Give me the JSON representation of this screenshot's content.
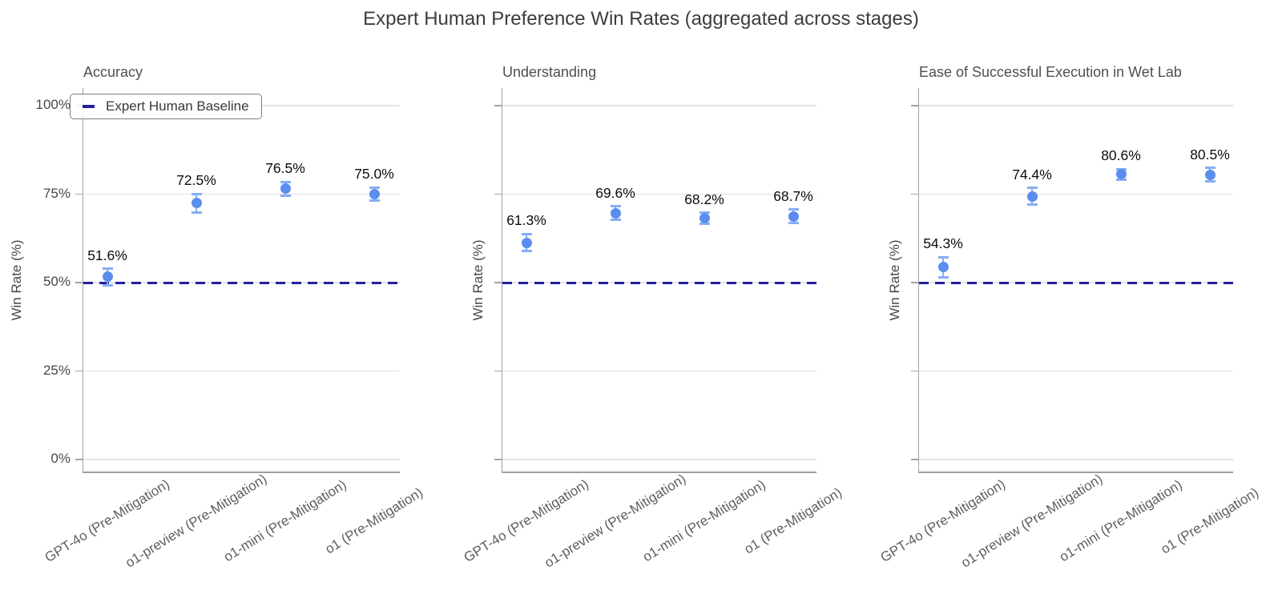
{
  "title": "Expert Human Preference Win Rates (aggregated across stages)",
  "legend": {
    "label": "Expert Human Baseline",
    "color": "#20209d"
  },
  "y_axis": {
    "label": "Win Rate (%)",
    "ticks": [
      "100%",
      "75%",
      "50%",
      "25%",
      "0%"
    ],
    "tick_values": [
      100,
      75,
      50,
      25,
      0
    ]
  },
  "colors": {
    "dot": "#5b8dee",
    "error_bar": "#87adf3",
    "baseline": "#20209d",
    "gridline": "#e3e3e3",
    "spine": "#a3a3a3"
  },
  "chart_data": [
    {
      "type": "scatter",
      "title": "Accuracy",
      "categories": [
        "GPT-4o (Pre-Mitigation)",
        "o1-preview (Pre-Mitigation)",
        "o1-mini (Pre-Mitigation)",
        "o1 (Pre-Mitigation)"
      ],
      "values": [
        51.6,
        72.5,
        76.5,
        75.0
      ],
      "errors": [
        2.3,
        2.6,
        1.9,
        1.9
      ],
      "value_labels": [
        "51.6%",
        "72.5%",
        "76.5%",
        "75.0%"
      ],
      "ylabel": "Win Rate (%)",
      "ylim": [
        0,
        100
      ],
      "yticks": [
        "0%",
        "25%",
        "50%",
        "75%",
        "100%"
      ],
      "baseline": {
        "value": 50,
        "label": "Expert Human Baseline"
      },
      "grid": true,
      "show_ytick_labels": true,
      "legend_position": "upper left"
    },
    {
      "type": "scatter",
      "title": "Understanding",
      "categories": [
        "GPT-4o (Pre-Mitigation)",
        "o1-preview (Pre-Mitigation)",
        "o1-mini (Pre-Mitigation)",
        "o1 (Pre-Mitigation)"
      ],
      "values": [
        61.3,
        69.6,
        68.2,
        68.7
      ],
      "errors": [
        2.4,
        1.9,
        1.5,
        1.9
      ],
      "value_labels": [
        "61.3%",
        "69.6%",
        "68.2%",
        "68.7%"
      ],
      "ylabel": "Win Rate (%)",
      "ylim": [
        0,
        100
      ],
      "yticks": [
        "0%",
        "25%",
        "50%",
        "75%",
        "100%"
      ],
      "baseline": {
        "value": 50,
        "label": "Expert Human Baseline"
      },
      "grid": true,
      "show_ytick_labels": false,
      "legend_position": "none"
    },
    {
      "type": "scatter",
      "title": "Ease of Successful Execution in Wet Lab",
      "categories": [
        "GPT-4o (Pre-Mitigation)",
        "o1-preview (Pre-Mitigation)",
        "o1-mini (Pre-Mitigation)",
        "o1 (Pre-Mitigation)"
      ],
      "values": [
        54.3,
        74.4,
        80.6,
        80.5
      ],
      "errors": [
        2.9,
        2.3,
        1.5,
        1.9
      ],
      "value_labels": [
        "54.3%",
        "74.4%",
        "80.6%",
        "80.5%"
      ],
      "ylabel": "Win Rate (%)",
      "ylim": [
        0,
        100
      ],
      "yticks": [
        "0%",
        "25%",
        "50%",
        "75%",
        "100%"
      ],
      "baseline": {
        "value": 50,
        "label": "Expert Human Baseline"
      },
      "grid": true,
      "show_ytick_labels": false,
      "legend_position": "none"
    }
  ]
}
